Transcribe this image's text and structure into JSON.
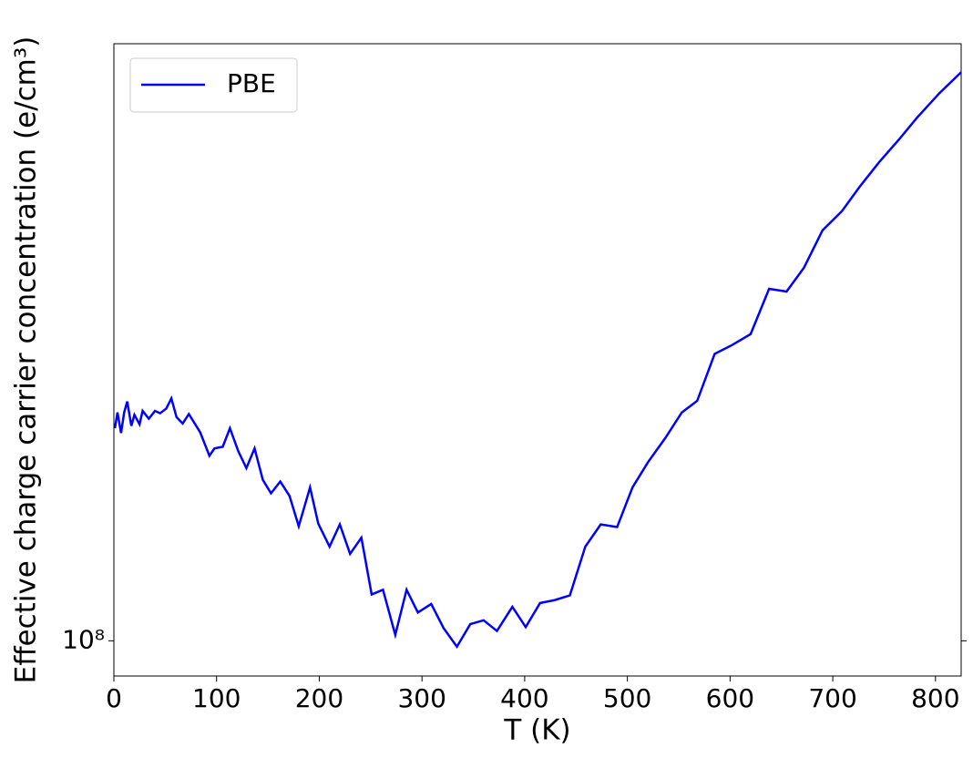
{
  "chart_data": {
    "type": "line",
    "x_label": "T (K)",
    "y_label": "Effective charge carrier concentration (e/cm³)",
    "y_scale": "log",
    "legend_position": "upper left",
    "xlim": [
      0,
      825
    ],
    "ylim": [
      96500000,
      183000000
    ],
    "xticks": [
      0,
      100,
      200,
      300,
      400,
      500,
      600,
      700,
      800
    ],
    "yticks": [
      {
        "value": 100000000,
        "label": "10⁸"
      }
    ],
    "x": [
      1,
      3.5,
      7,
      10,
      13,
      17,
      20,
      25,
      28,
      34,
      40,
      45,
      51,
      56,
      61,
      67,
      73,
      84,
      93,
      98,
      106,
      113,
      121,
      129,
      137,
      145,
      153,
      162,
      171,
      180,
      191,
      199,
      210,
      220,
      230,
      241,
      251,
      262,
      274,
      285,
      296,
      309,
      321,
      334,
      347,
      360,
      373,
      388,
      401,
      415,
      429,
      444,
      459,
      474,
      490,
      505,
      520,
      537,
      553,
      568,
      585,
      602,
      620,
      638,
      655,
      672,
      690,
      709,
      726,
      745,
      764,
      782,
      804,
      825
    ],
    "series": [
      {
        "name": "PBE",
        "color": "#0000ff",
        "values": [
          124000000,
          126000000,
          123400000,
          126000000,
          127400000,
          124300000,
          125700000,
          124500000,
          126200000,
          125200000,
          126200000,
          125900000,
          126500000,
          127800000,
          125400000,
          124600000,
          125800000,
          123500000,
          120600000,
          121500000,
          121700000,
          124000000,
          121200000,
          119100000,
          121500000,
          117700000,
          116100000,
          117500000,
          115800000,
          112300000,
          116800000,
          112600000,
          110000000,
          112500000,
          109200000,
          111000000,
          104800000,
          105300000,
          100600000,
          105300000,
          102900000,
          103800000,
          101300000,
          99400000,
          101700000,
          102100000,
          101000000,
          103500000,
          101400000,
          103900000,
          104200000,
          104700000,
          110000000,
          112500000,
          112200000,
          116800000,
          119800000,
          122800000,
          126000000,
          127500000,
          133700000,
          134900000,
          136400000,
          142800000,
          142400000,
          145900000,
          151500000,
          154500000,
          158300000,
          162300000,
          166000000,
          169800000,
          174100000,
          177800000
        ]
      }
    ]
  }
}
